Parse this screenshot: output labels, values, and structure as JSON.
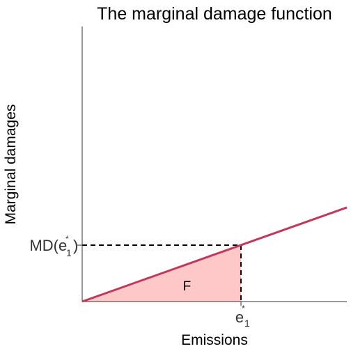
{
  "chart_data": {
    "type": "line",
    "title": "The marginal damage function",
    "xlabel": "Emissions",
    "ylabel": "Marginal damages",
    "xlim": [
      0,
      1
    ],
    "ylim": [
      0,
      1
    ],
    "grid": false,
    "series": [
      {
        "x": [
          0,
          1
        ],
        "y": [
          0,
          0.342
        ],
        "color": "#c0395a"
      }
    ],
    "reference_point": {
      "x": 0.6,
      "y": 0.205,
      "x_tick": {
        "base": "e",
        "sub": "1",
        "sup": "*"
      },
      "y_tick": {
        "prefix": "MD(",
        "base": "e",
        "sub": "1",
        "sup": "*",
        "suffix": ")"
      }
    },
    "shaded_area": {
      "label": "F",
      "x_range": [
        0,
        0.6
      ],
      "fill": "#ffc8c8"
    }
  }
}
